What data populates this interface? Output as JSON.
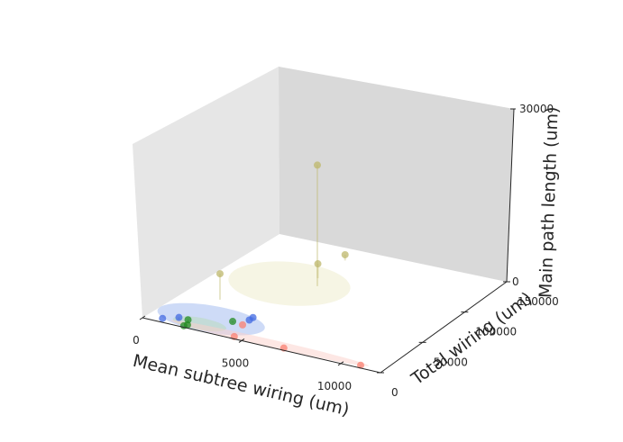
{
  "chart_data": {
    "type": "scatter3d",
    "title": "",
    "xlabel": "Mean subtree wiring (um)",
    "ylabel": "Total wiring (um)",
    "zlabel": "Main path length (um)",
    "xlim": [
      0,
      12000
    ],
    "ylim": [
      0,
      150000
    ],
    "zlim": [
      0,
      30000
    ],
    "xticks": [
      {
        "value": 0,
        "label": "0"
      },
      {
        "value": 5000,
        "label": "5000"
      },
      {
        "value": 10000,
        "label": "10000"
      }
    ],
    "yticks": [
      {
        "value": 0,
        "label": "0"
      },
      {
        "value": 50000,
        "label": "50000"
      },
      {
        "value": 100000,
        "label": "100000"
      },
      {
        "value": 150000,
        "label": "150000"
      }
    ],
    "zticks": [
      {
        "value": 0,
        "label": "0"
      },
      {
        "value": 30000,
        "label": "30000"
      }
    ],
    "grid": false,
    "legend": "none",
    "series": [
      {
        "color": "#4169e1",
        "points": [
          {
            "x": 800,
            "y": 5000,
            "z": 0
          },
          {
            "x": 1500,
            "y": 8000,
            "z": 400
          },
          {
            "x": 4200,
            "y": 28000,
            "z": 0
          },
          {
            "x": 4300,
            "y": 30000,
            "z": 300
          }
        ],
        "ellipse": {
          "cx": 2700,
          "cy": 18000,
          "rx": 2600,
          "ry": 18000,
          "color": "#9db8f0"
        }
      },
      {
        "color": "#228b22",
        "points": [
          {
            "x": 2000,
            "y": 2000,
            "z": 0
          },
          {
            "x": 2100,
            "y": 4000,
            "z": 0
          },
          {
            "x": 2000,
            "y": 7000,
            "z": 500
          },
          {
            "x": 3700,
            "y": 20000,
            "z": 200
          }
        ],
        "ellipse": {
          "cx": 2500,
          "cy": 9000,
          "rx": 1300,
          "ry": 8000,
          "color": "#b7dcb7"
        }
      },
      {
        "color": "#fa8072",
        "points": [
          {
            "x": 4500,
            "y": 3000,
            "z": 0
          },
          {
            "x": 4200,
            "y": 20000,
            "z": 0
          },
          {
            "x": 7000,
            "y": 3000,
            "z": 0
          },
          {
            "x": 11000,
            "y": 0,
            "z": 500
          }
        ],
        "ellipse": {
          "cx": 6200,
          "cy": 5000,
          "rx": 5000,
          "ry": 5000,
          "color": "#fcd0ca"
        }
      },
      {
        "color": "#bdb76b",
        "points": [
          {
            "x": 2000,
            "y": 45000,
            "z": 4500
          },
          {
            "x": 5000,
            "y": 90000,
            "z": 21000
          },
          {
            "x": 4600,
            "y": 100000,
            "z": 2500
          },
          {
            "x": 4700,
            "y": 130000,
            "z": 1000
          }
        ],
        "ellipse": {
          "cx": 3800,
          "cy": 85000,
          "rx": 2800,
          "ry": 30000,
          "color": "#eeecc9"
        }
      }
    ]
  }
}
